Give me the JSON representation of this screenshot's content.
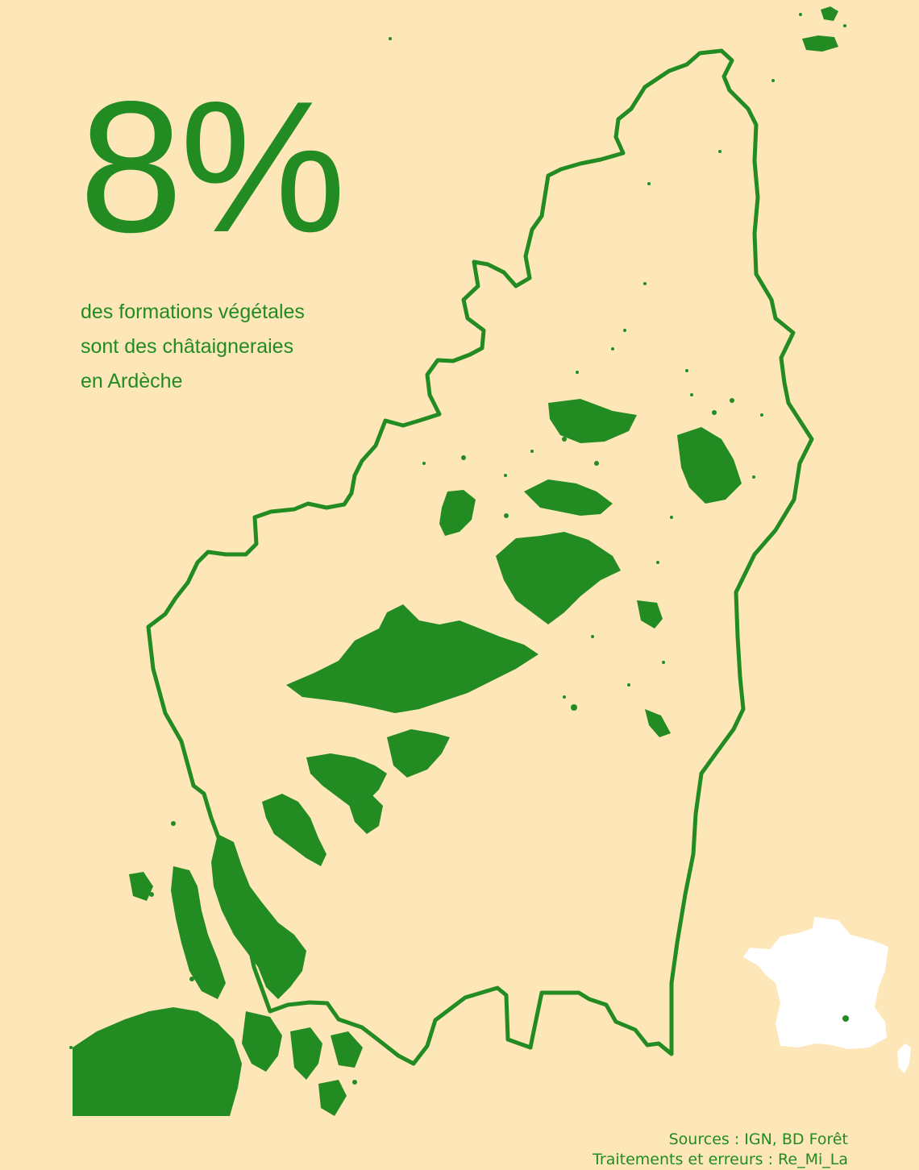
{
  "headline": {
    "value": "8%",
    "lines": [
      "des formations végétales",
      "sont des châtaigneraies",
      "en Ardèche"
    ]
  },
  "sources": {
    "line1": "Sources : IGN, BD Forêt",
    "line2": "Traitements et erreurs : Re_Mi_La"
  },
  "colors": {
    "background": "#fde6b8",
    "forest": "#228b22",
    "outline": "#228b22",
    "inset_france": "#ffffff"
  },
  "map": {
    "region": "Ardèche",
    "layers": [
      "department-outline",
      "chestnut-groves",
      "france-inset-locator"
    ]
  }
}
